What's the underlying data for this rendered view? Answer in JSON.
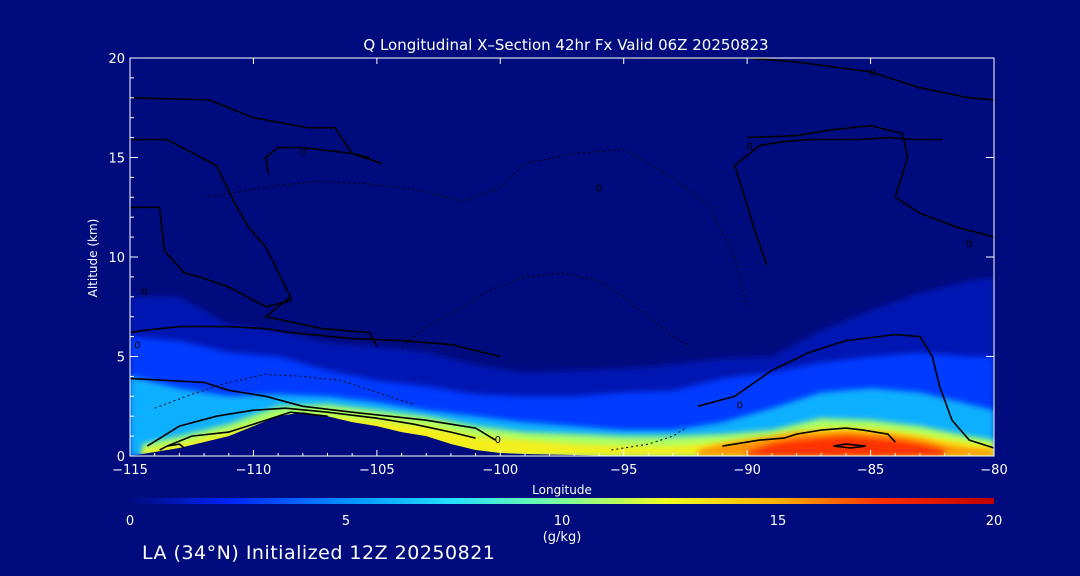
{
  "footer": "LA (34°N) Initialized 12Z 20250821",
  "chart_data": {
    "type": "heatmap",
    "title": "Q Longitudinal X–Section 42hr  Fx Valid 06Z 20250823",
    "xlabel": "Longitude",
    "ylabel": "Altitude (km)",
    "xlim": [
      -115,
      -80
    ],
    "ylim": [
      0,
      20
    ],
    "x_ticks": [
      "−115",
      "−110",
      "−105",
      "−100",
      "−95",
      "−90",
      "−85",
      "−80"
    ],
    "y_ticks": [
      "0",
      "5",
      "10",
      "15",
      "20"
    ],
    "colorbar": {
      "label": "(g/kg)",
      "range": [
        0,
        20
      ],
      "ticks": [
        "0",
        "5",
        "10",
        "15",
        "20"
      ]
    },
    "contour_labels": [
      "0",
      "0",
      "0",
      "0",
      "0",
      "0",
      "0",
      "0",
      "0"
    ],
    "colors": {
      "background": "#000c7e",
      "scale": [
        "#000c7e",
        "#0026ff",
        "#0090ff",
        "#22e0ff",
        "#7cff9a",
        "#f0ff20",
        "#ffb000",
        "#ff3000",
        "#c00000"
      ]
    },
    "q_fields": [
      {
        "x": [
          -115,
          -113,
          -111,
          -109,
          -107,
          -105,
          -103,
          -101,
          -99,
          -97,
          -95,
          -93,
          -91,
          -89,
          -87,
          -85,
          -83,
          -81,
          -80
        ],
        "top": [
          8.0,
          8.0,
          6.6,
          6.3,
          5.7,
          5.5,
          5.2,
          4.6,
          4.2,
          4.3,
          4.4,
          4.6,
          4.9,
          5.0,
          6.3,
          7.3,
          8.2,
          8.8,
          9.0
        ],
        "q": 1
      },
      {
        "x": [
          -115,
          -113,
          -111,
          -109,
          -107,
          -105,
          -103,
          -101,
          -99,
          -97,
          -95,
          -93,
          -91,
          -89,
          -87,
          -85,
          -83,
          -81,
          -80
        ],
        "top": [
          6.0,
          5.8,
          5.2,
          5.0,
          4.3,
          3.8,
          3.5,
          3.1,
          3.0,
          3.0,
          3.2,
          3.3,
          3.9,
          4.2,
          4.7,
          5.0,
          5.2,
          5.0,
          5.0
        ],
        "q": 3
      },
      {
        "x": [
          -115,
          -113,
          -111,
          -109,
          -107,
          -105,
          -103,
          -101,
          -99,
          -97,
          -95,
          -93,
          -91,
          -89,
          -87,
          -85,
          -83,
          -81,
          -80
        ],
        "top": [
          4.0,
          3.4,
          3.0,
          3.1,
          3.0,
          2.7,
          2.3,
          2.0,
          1.7,
          1.5,
          1.3,
          1.3,
          1.7,
          2.4,
          3.2,
          3.4,
          3.2,
          2.6,
          2.3
        ],
        "q": 6
      },
      {
        "x": [
          -114.5,
          -113,
          -111,
          -109,
          -107,
          -105,
          -103,
          -101,
          -99,
          -97,
          -95,
          -93,
          -91,
          -89,
          -87,
          -85,
          -83,
          -81,
          -80
        ],
        "top": [
          0.6,
          1.0,
          1.6,
          2.5,
          2.6,
          2.3,
          2.0,
          1.5,
          1.2,
          1.1,
          1.0,
          1.0,
          1.1,
          1.3,
          1.9,
          1.8,
          1.5,
          1.0,
          0.8
        ],
        "q": 11
      },
      {
        "x": [
          -114.5,
          -113,
          -111,
          -109,
          -107,
          -105,
          -103,
          -101,
          -99,
          -97,
          -95,
          -93,
          -91,
          -89,
          -87,
          -85,
          -83,
          -81,
          -80
        ],
        "top": [
          0.3,
          0.6,
          1.2,
          1.9,
          2.0,
          1.8,
          1.5,
          1.0,
          0.8,
          0.6,
          0.5,
          0.5,
          0.7,
          0.9,
          1.4,
          1.4,
          1.1,
          0.7,
          0.5
        ],
        "q": 13
      },
      {
        "x": [
          -92,
          -91,
          -90,
          -89,
          -88,
          -87,
          -86,
          -85,
          -84,
          -83,
          -82,
          -81,
          -80
        ],
        "top": [
          0.3,
          0.6,
          0.8,
          1.0,
          1.2,
          1.2,
          1.3,
          1.2,
          1.1,
          0.9,
          0.6,
          0.4,
          0.3
        ],
        "q": 15.5
      },
      {
        "x": [
          -90,
          -89,
          -88,
          -87,
          -86,
          -85,
          -84,
          -83,
          -82
        ],
        "top": [
          0.2,
          0.6,
          0.8,
          0.9,
          1.0,
          0.9,
          0.8,
          0.6,
          0.3
        ],
        "q": 17.5
      }
    ],
    "terrain": {
      "x": [
        -115,
        -114.5,
        -113,
        -111,
        -109,
        -108,
        -107,
        -106,
        -105,
        -104,
        -103,
        -102,
        -101,
        -100,
        -99,
        -97,
        -95,
        -90,
        -85,
        -80
      ],
      "y": [
        0.0,
        0.1,
        0.4,
        1.0,
        2.0,
        2.2,
        2.0,
        1.7,
        1.5,
        1.2,
        1.0,
        0.6,
        0.3,
        0.15,
        0.1,
        0.05,
        0.0,
        0.0,
        0.0,
        0.0
      ]
    },
    "contours_solid": [
      {
        "x": [
          -115,
          -113.8,
          -113.6,
          -112.8,
          -112.2,
          -111,
          -109.5,
          -108.5,
          -108.5
        ],
        "y": [
          12.5,
          12.5,
          10.3,
          9.2,
          9.0,
          8.5,
          7.5,
          7.8,
          8.0
        ]
      },
      {
        "x": [
          -115,
          -113.5,
          -111.5,
          -110.8,
          -110.2,
          -109.5,
          -108.5
        ],
        "y": [
          15.9,
          15.9,
          14.6,
          12.8,
          11.5,
          10.5,
          8.0
        ]
      },
      {
        "x": [
          -115,
          -111.8,
          -110,
          -107.8,
          -106.7,
          -106.0,
          -105.3
        ],
        "y": [
          18.0,
          17.9,
          17.0,
          16.5,
          16.5,
          15.2,
          15.0
        ]
      },
      {
        "x": [
          -109.4,
          -109.5,
          -109.0,
          -108.0,
          -106.0,
          -104.8
        ],
        "y": [
          14.2,
          15.0,
          15.5,
          15.5,
          15.2,
          14.7
        ]
      },
      {
        "x": [
          -108.5,
          -109.0,
          -109.5,
          -107.2,
          -105.3,
          -105.0
        ],
        "y": [
          8.0,
          7.5,
          7.0,
          6.4,
          6.2,
          5.5
        ]
      },
      {
        "x": [
          -115,
          -114.5,
          -113.0,
          -111.0,
          -109.5,
          -108.5,
          -106.0,
          -104.0,
          -102.0,
          -101.0,
          -100.0
        ],
        "y": [
          6.2,
          6.3,
          6.5,
          6.5,
          6.4,
          6.2,
          5.9,
          5.8,
          5.6,
          5.3,
          5.0
        ]
      },
      {
        "x": [
          -115,
          -113.5,
          -112.0,
          -111.0,
          -109.5,
          -108.0,
          -106.0,
          -104.5,
          -103.0,
          -102.0,
          -101.0,
          -100.2
        ],
        "y": [
          3.9,
          3.8,
          3.7,
          3.3,
          3.0,
          2.5,
          2.2,
          2.0,
          1.8,
          1.6,
          1.4,
          0.8
        ]
      },
      {
        "x": [
          -114.3,
          -113.0,
          -111.5,
          -110.0,
          -108.7,
          -107.0,
          -105.0,
          -103.5,
          -102.0,
          -101.0
        ],
        "y": [
          0.5,
          1.5,
          2.0,
          2.3,
          2.4,
          2.2,
          1.9,
          1.6,
          1.2,
          0.9
        ]
      },
      {
        "x": [
          -113.5,
          -112.5,
          -111.0,
          -109.5,
          -108.5,
          -107.0
        ],
        "y": [
          0.5,
          1.0,
          1.2,
          1.8,
          2.2,
          2.0
        ]
      },
      {
        "x": [
          -113.8,
          -113.5,
          -113.0,
          -112.8
        ],
        "y": [
          0.3,
          0.5,
          0.6,
          0.4
        ]
      },
      {
        "x": [
          -92.0,
          -90.5,
          -89.0,
          -87.5,
          -86.0,
          -84.0,
          -83.0,
          -82.5,
          -82.2,
          -81.7,
          -81.0,
          -80.0
        ],
        "y": [
          2.5,
          3.0,
          4.3,
          5.2,
          5.8,
          6.1,
          6.0,
          5.0,
          3.5,
          1.8,
          0.8,
          0.4
        ]
      },
      {
        "x": [
          -91.0,
          -90.5,
          -89.5,
          -88.5,
          -88.0,
          -87.0,
          -86.0,
          -85.3,
          -84.3,
          -84.0
        ],
        "y": [
          0.5,
          0.6,
          0.8,
          0.9,
          1.1,
          1.3,
          1.4,
          1.3,
          1.1,
          0.7
        ]
      },
      {
        "x": [
          -86.5,
          -86.0,
          -85.2,
          -85.8,
          -86.5
        ],
        "y": [
          0.5,
          0.6,
          0.5,
          0.4,
          0.5
        ]
      },
      {
        "x": [
          -90.0,
          -88.0,
          -86.5,
          -85.0,
          -83.7,
          -83.5,
          -84.0,
          -83.0,
          -81.5,
          -80.0
        ],
        "y": [
          16.0,
          16.1,
          16.4,
          16.6,
          16.2,
          15.0,
          13.0,
          12.2,
          11.5,
          11.0
        ]
      },
      {
        "x": [
          -89.2,
          -89.6,
          -90.5,
          -89.5,
          -89.0,
          -88.5,
          -87.5,
          -85.5,
          -84.2,
          -83.3,
          -82.1
        ],
        "y": [
          9.6,
          11.0,
          14.6,
          15.6,
          15.7,
          15.8,
          15.9,
          15.9,
          16.0,
          15.9,
          15.9
        ]
      },
      {
        "x": [
          -95.0,
          -93.0,
          -90.0,
          -88.0,
          -85.0,
          -83.0,
          -81.0,
          -80.0
        ],
        "y": [
          20.0,
          20.0,
          20.0,
          19.8,
          19.3,
          18.5,
          18.0,
          17.9
        ]
      }
    ],
    "contours_dashed": [
      {
        "x": [
          -112.0,
          -109.5,
          -107.5,
          -105.5,
          -103.5,
          -101.5,
          -100.0,
          -99.0,
          -97.0,
          -95.0,
          -93.0,
          -91.5,
          -90.5,
          -90.0
        ],
        "y": [
          13.0,
          13.5,
          13.8,
          13.7,
          13.4,
          12.8,
          13.5,
          14.7,
          15.2,
          15.4,
          14.0,
          12.5,
          10.0,
          7.5
        ]
      },
      {
        "x": [
          -104.0,
          -103.0,
          -101.5,
          -100.5,
          -99.0,
          -97.5,
          -96.0,
          -95.0,
          -94.0,
          -93.0,
          -92.3
        ],
        "y": [
          5.5,
          6.5,
          7.5,
          8.3,
          9.0,
          9.2,
          8.8,
          8.0,
          7.0,
          6.0,
          5.5
        ]
      },
      {
        "x": [
          -114.0,
          -112.5,
          -111.0,
          -109.5,
          -108.0,
          -106.5,
          -105.0,
          -103.5
        ],
        "y": [
          2.4,
          3.1,
          3.7,
          4.1,
          4.0,
          3.8,
          3.2,
          2.6
        ]
      },
      {
        "x": [
          -95.5,
          -94.0,
          -93.0,
          -92.5
        ],
        "y": [
          0.3,
          0.6,
          1.0,
          1.4
        ]
      }
    ]
  }
}
